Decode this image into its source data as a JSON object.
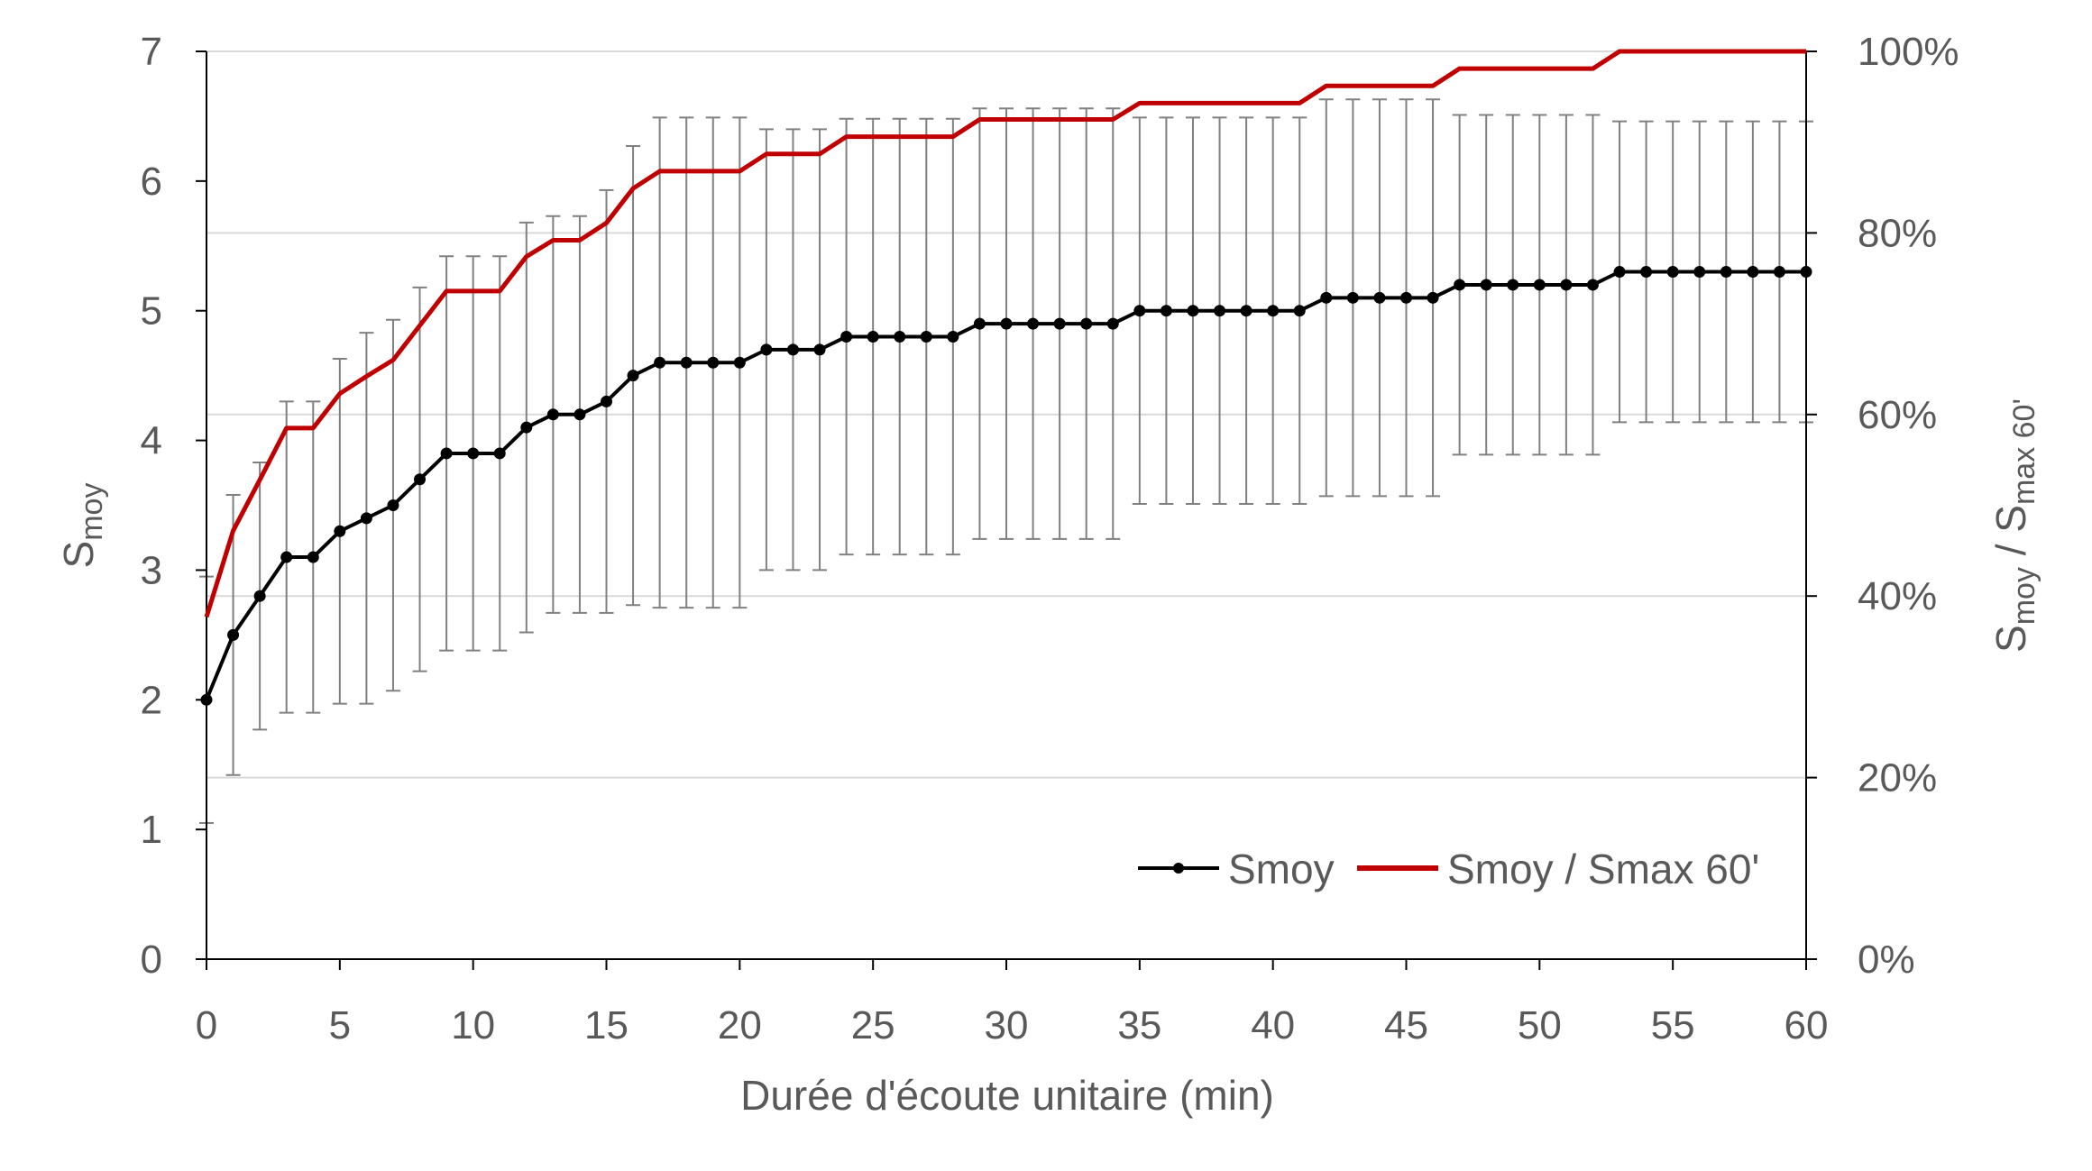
{
  "chart_data": {
    "type": "line",
    "xlabel": "Durée d'écoute unitaire (min)",
    "ylabel": {
      "main": "S",
      "sub": "moy"
    },
    "y2label": {
      "main1": "S",
      "sub1": "moy",
      "mid": " / S",
      "sub2": "max 60'"
    },
    "xlim": [
      0,
      60
    ],
    "ylim": [
      0,
      7
    ],
    "y2lim": [
      0,
      1
    ],
    "x_ticks": [
      0,
      5,
      10,
      15,
      20,
      25,
      30,
      35,
      40,
      45,
      50,
      55,
      60
    ],
    "x_tick_labels": [
      "0",
      "5",
      "10",
      "15",
      "20",
      "25",
      "30",
      "35",
      "40",
      "45",
      "50",
      "55",
      "60"
    ],
    "y_ticks": [
      0,
      1,
      2,
      3,
      4,
      5,
      6,
      7
    ],
    "y_tick_labels": [
      "0",
      "1",
      "2",
      "3",
      "4",
      "5",
      "6",
      "7"
    ],
    "y2_ticks": [
      0,
      0.2,
      0.4,
      0.6,
      0.8,
      1.0
    ],
    "y2_tick_labels": [
      "0%",
      "20%",
      "40%",
      "60%",
      "80%",
      "100%"
    ],
    "legend": {
      "position": "bottom-right",
      "entries": [
        "Smoy",
        "Smoy / Smax 60'"
      ]
    },
    "grid": {
      "y2_major": true
    },
    "colors": {
      "smoy": "#000000",
      "ratio": "#c00000",
      "error": "#808080",
      "axis": "#000000",
      "grid": "#d9d9d9",
      "text": "#595959"
    },
    "x": [
      0,
      1,
      2,
      3,
      4,
      5,
      6,
      7,
      8,
      9,
      10,
      11,
      12,
      13,
      14,
      15,
      16,
      17,
      18,
      19,
      20,
      21,
      22,
      23,
      24,
      25,
      26,
      27,
      28,
      29,
      30,
      31,
      32,
      33,
      34,
      35,
      36,
      37,
      38,
      39,
      40,
      41,
      42,
      43,
      44,
      45,
      46,
      47,
      48,
      49,
      50,
      51,
      52,
      53,
      54,
      55,
      56,
      57,
      58,
      59,
      60
    ],
    "series": [
      {
        "name": "Smoy",
        "axis": "left",
        "markers": true,
        "values": [
          2.0,
          2.5,
          2.8,
          3.1,
          3.1,
          3.3,
          3.4,
          3.5,
          3.7,
          3.9,
          3.9,
          3.9,
          4.1,
          4.2,
          4.2,
          4.3,
          4.5,
          4.6,
          4.6,
          4.6,
          4.6,
          4.7,
          4.7,
          4.7,
          4.8,
          4.8,
          4.8,
          4.8,
          4.8,
          4.9,
          4.9,
          4.9,
          4.9,
          4.9,
          4.9,
          5.0,
          5.0,
          5.0,
          5.0,
          5.0,
          5.0,
          5.0,
          5.1,
          5.1,
          5.1,
          5.1,
          5.1,
          5.2,
          5.2,
          5.2,
          5.2,
          5.2,
          5.2,
          5.3,
          5.3,
          5.3,
          5.3,
          5.3,
          5.3,
          5.3,
          5.3
        ],
        "error": [
          0.95,
          1.08,
          1.03,
          1.2,
          1.2,
          1.33,
          1.43,
          1.43,
          1.48,
          1.52,
          1.52,
          1.52,
          1.58,
          1.53,
          1.53,
          1.63,
          1.77,
          1.89,
          1.89,
          1.89,
          1.89,
          1.7,
          1.7,
          1.7,
          1.68,
          1.68,
          1.68,
          1.68,
          1.68,
          1.66,
          1.66,
          1.66,
          1.66,
          1.66,
          1.66,
          1.49,
          1.49,
          1.49,
          1.49,
          1.49,
          1.49,
          1.49,
          1.53,
          1.53,
          1.53,
          1.53,
          1.53,
          1.31,
          1.31,
          1.31,
          1.31,
          1.31,
          1.31,
          1.16,
          1.16,
          1.16,
          1.16,
          1.16,
          1.16,
          1.16,
          1.16
        ]
      },
      {
        "name": "Smoy / Smax 60'",
        "axis": "right",
        "markers": false,
        "values": [
          0.377,
          0.472,
          0.528,
          0.585,
          0.585,
          0.623,
          0.642,
          0.66,
          0.698,
          0.736,
          0.736,
          0.736,
          0.774,
          0.792,
          0.792,
          0.811,
          0.849,
          0.868,
          0.868,
          0.868,
          0.868,
          0.887,
          0.887,
          0.887,
          0.906,
          0.906,
          0.906,
          0.906,
          0.906,
          0.925,
          0.925,
          0.925,
          0.925,
          0.925,
          0.925,
          0.943,
          0.943,
          0.943,
          0.943,
          0.943,
          0.943,
          0.943,
          0.962,
          0.962,
          0.962,
          0.962,
          0.962,
          0.981,
          0.981,
          0.981,
          0.981,
          0.981,
          0.981,
          1.0,
          1.0,
          1.0,
          1.0,
          1.0,
          1.0,
          1.0,
          1.0
        ]
      }
    ]
  }
}
